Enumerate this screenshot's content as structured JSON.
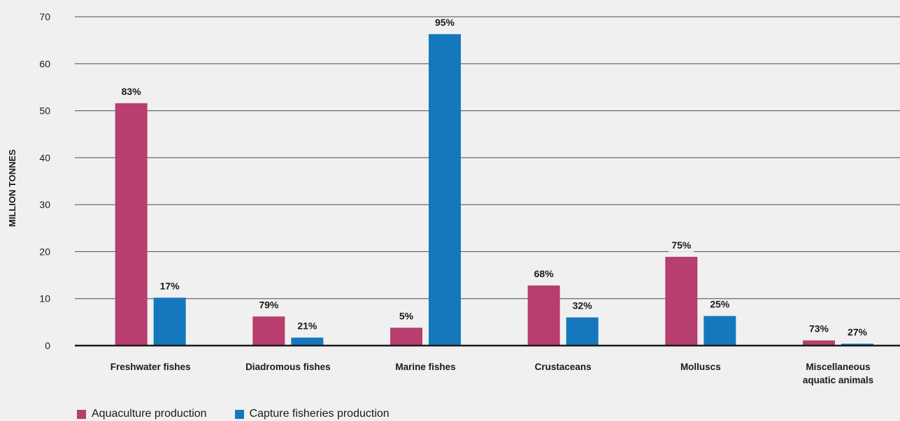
{
  "chart_data": {
    "type": "bar",
    "ylabel": "MILLION TONNES",
    "ylim": [
      0,
      70
    ],
    "yticks": [
      "0",
      "10",
      "20",
      "30",
      "40",
      "50",
      "60",
      "70"
    ],
    "categories": [
      [
        "Freshwater fishes"
      ],
      [
        "Diadromous fishes"
      ],
      [
        "Marine fishes"
      ],
      [
        "Crustaceans"
      ],
      [
        "Molluscs"
      ],
      [
        "Miscellaneous",
        "aquatic animals"
      ]
    ],
    "series": [
      {
        "name": "Aquaculture production",
        "color": "#b73e6e",
        "values": [
          51.6,
          6.2,
          3.8,
          12.8,
          18.9,
          1.1
        ],
        "labels": [
          "83%",
          "79%",
          "5%",
          "68%",
          "75%",
          "73%"
        ]
      },
      {
        "name": "Capture fisheries production",
        "color": "#1578bd",
        "values": [
          10.2,
          1.7,
          66.3,
          6.0,
          6.3,
          0.4
        ],
        "labels": [
          "17%",
          "21%",
          "95%",
          "32%",
          "25%",
          "27%"
        ]
      }
    ],
    "grid": true,
    "legend_position": "bottom-left"
  }
}
